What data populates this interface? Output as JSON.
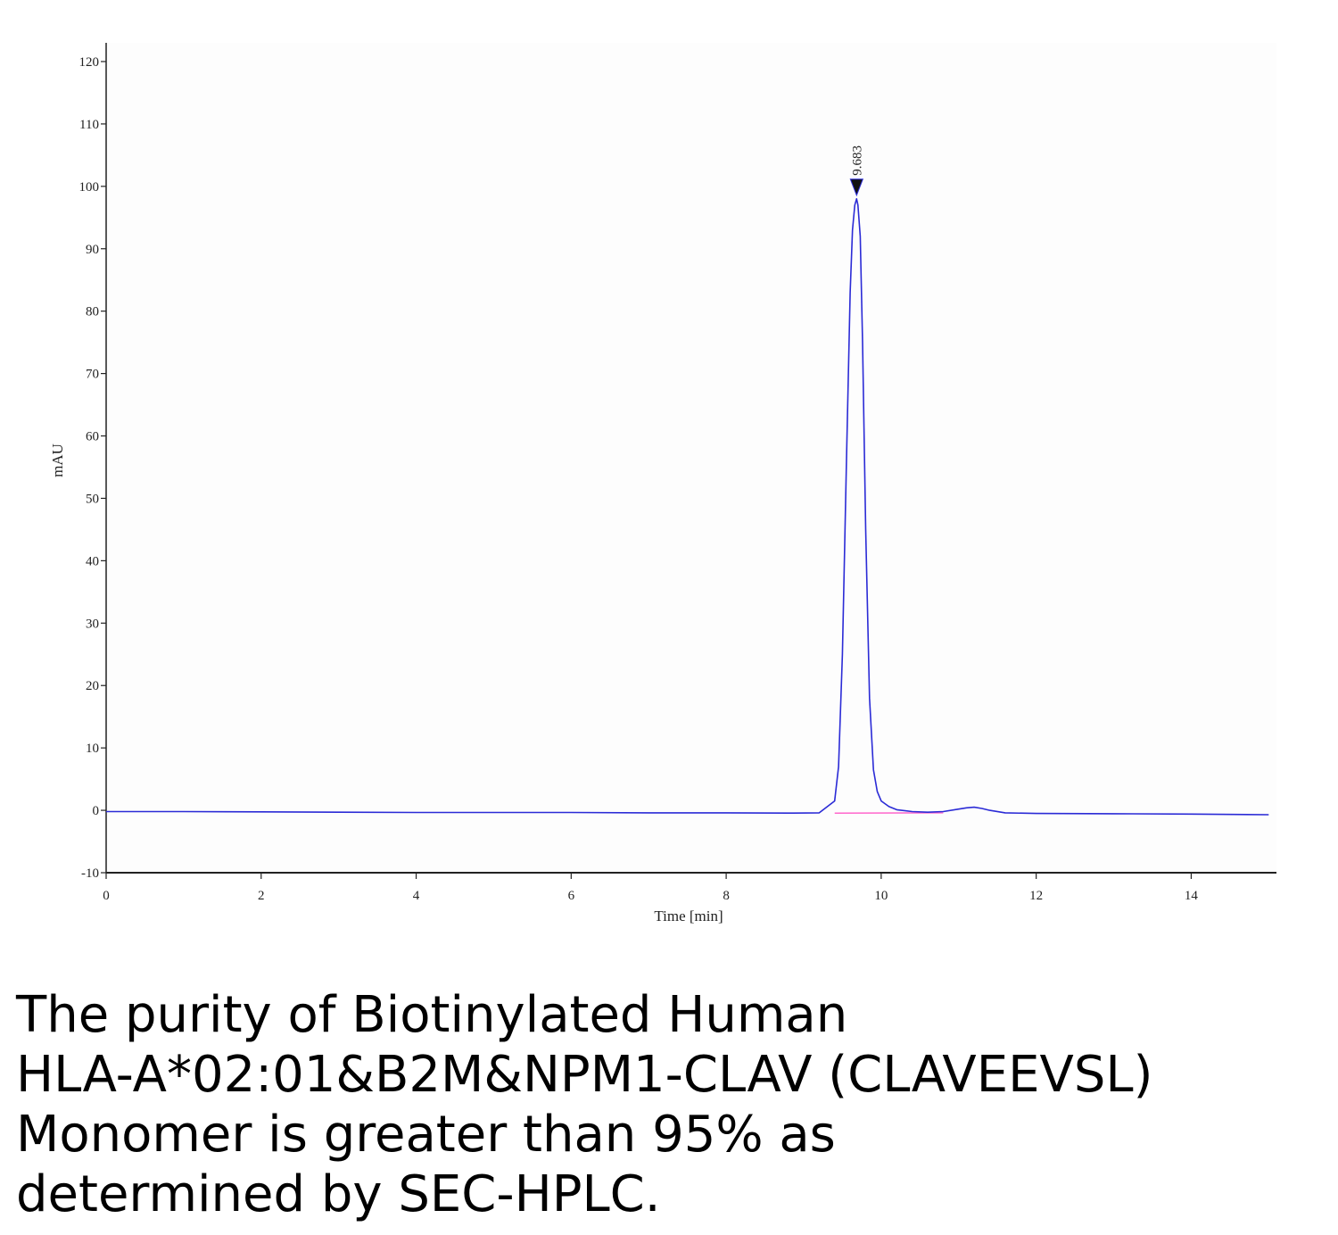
{
  "chart_data": {
    "type": "line",
    "title": "",
    "xlabel": "Time [min]",
    "ylabel": "mAU",
    "xlim": [
      0,
      15.1
    ],
    "ylim": [
      -10,
      123
    ],
    "x_ticks": [
      0,
      2,
      4,
      6,
      8,
      10,
      12,
      14
    ],
    "y_ticks": [
      -10,
      0,
      10,
      20,
      30,
      40,
      50,
      60,
      70,
      80,
      90,
      100,
      110,
      120
    ],
    "grid": false,
    "series": [
      {
        "color": "#2b2bd6",
        "x": [
          0,
          1,
          2,
          3,
          4,
          5,
          6,
          7,
          8,
          8.8,
          9.2,
          9.4,
          9.45,
          9.5,
          9.55,
          9.6,
          9.63,
          9.66,
          9.683,
          9.7,
          9.73,
          9.76,
          9.8,
          9.85,
          9.9,
          9.95,
          10.0,
          10.1,
          10.2,
          10.4,
          10.6,
          10.8,
          11.0,
          11.1,
          11.2,
          11.3,
          11.4,
          11.6,
          12,
          13,
          14,
          15
        ],
        "y": [
          -0.2,
          -0.2,
          -0.25,
          -0.3,
          -0.35,
          -0.35,
          -0.35,
          -0.4,
          -0.4,
          -0.45,
          -0.4,
          1.5,
          7,
          25,
          55,
          83,
          93,
          97,
          98,
          97,
          92,
          75,
          45,
          18,
          6.5,
          3,
          1.5,
          0.6,
          0.1,
          -0.2,
          -0.3,
          -0.2,
          0.2,
          0.4,
          0.5,
          0.3,
          0,
          -0.4,
          -0.5,
          -0.55,
          -0.6,
          -0.7
        ]
      }
    ],
    "baseline": {
      "color": "#ff66cc",
      "x": [
        9.4,
        10.8
      ],
      "y": [
        -0.45,
        -0.4
      ]
    },
    "annotations": [
      {
        "text": "9.683",
        "x": 9.683,
        "y": 98,
        "marker": "triangle-down"
      }
    ]
  },
  "caption": {
    "lines": [
      "The purity of Biotinylated Human",
      "HLA-A*02:01&B2M&NPM1-CLAV (CLAVEEVSL)",
      "Monomer is greater than 95% as",
      "determined by SEC-HPLC."
    ]
  }
}
